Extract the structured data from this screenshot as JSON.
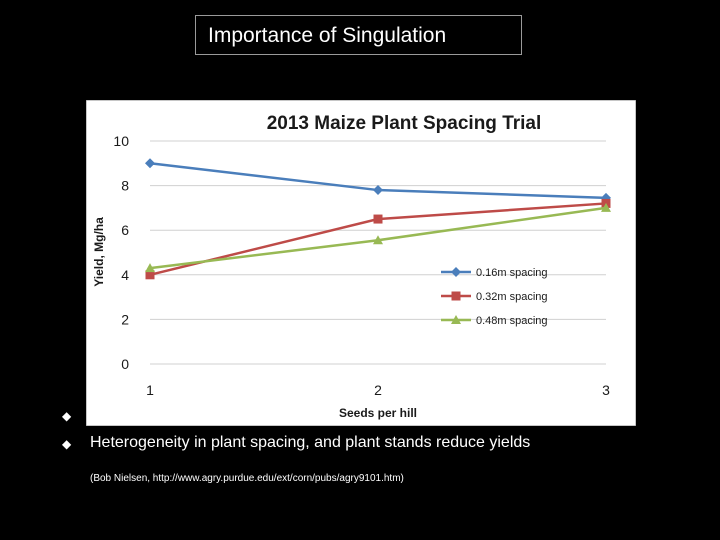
{
  "slide": {
    "title": "Importance of Singulation",
    "bullets": [
      "",
      "Heterogeneity in plant spacing, and plant stands reduce yields"
    ],
    "bullet_symbol": "◆",
    "citation": "(Bob Nielsen, http://www.agry.purdue.edu/ext/corn/pubs/agry9101.htm)"
  },
  "chart_data": {
    "type": "line",
    "title": "2013 Maize Plant Spacing Trial",
    "xlabel": "Seeds per hill",
    "ylabel": "Yield, Mg/ha",
    "x": [
      1,
      2,
      3
    ],
    "xticks": [
      "1",
      "2",
      "3"
    ],
    "yticks": [
      "0",
      "2",
      "4",
      "6",
      "8",
      "10"
    ],
    "ylim": [
      0,
      10
    ],
    "grid": true,
    "legend_position": "right",
    "series": [
      {
        "name": "0.16m spacing",
        "values": [
          9.0,
          7.8,
          7.45
        ],
        "color": "#4a7ebb",
        "marker": "diamond"
      },
      {
        "name": "0.32m spacing",
        "values": [
          4.0,
          6.5,
          7.2
        ],
        "color": "#be4b48",
        "marker": "square"
      },
      {
        "name": "0.48m spacing",
        "values": [
          4.3,
          5.55,
          7.0
        ],
        "color": "#98b954",
        "marker": "triangle"
      }
    ]
  }
}
